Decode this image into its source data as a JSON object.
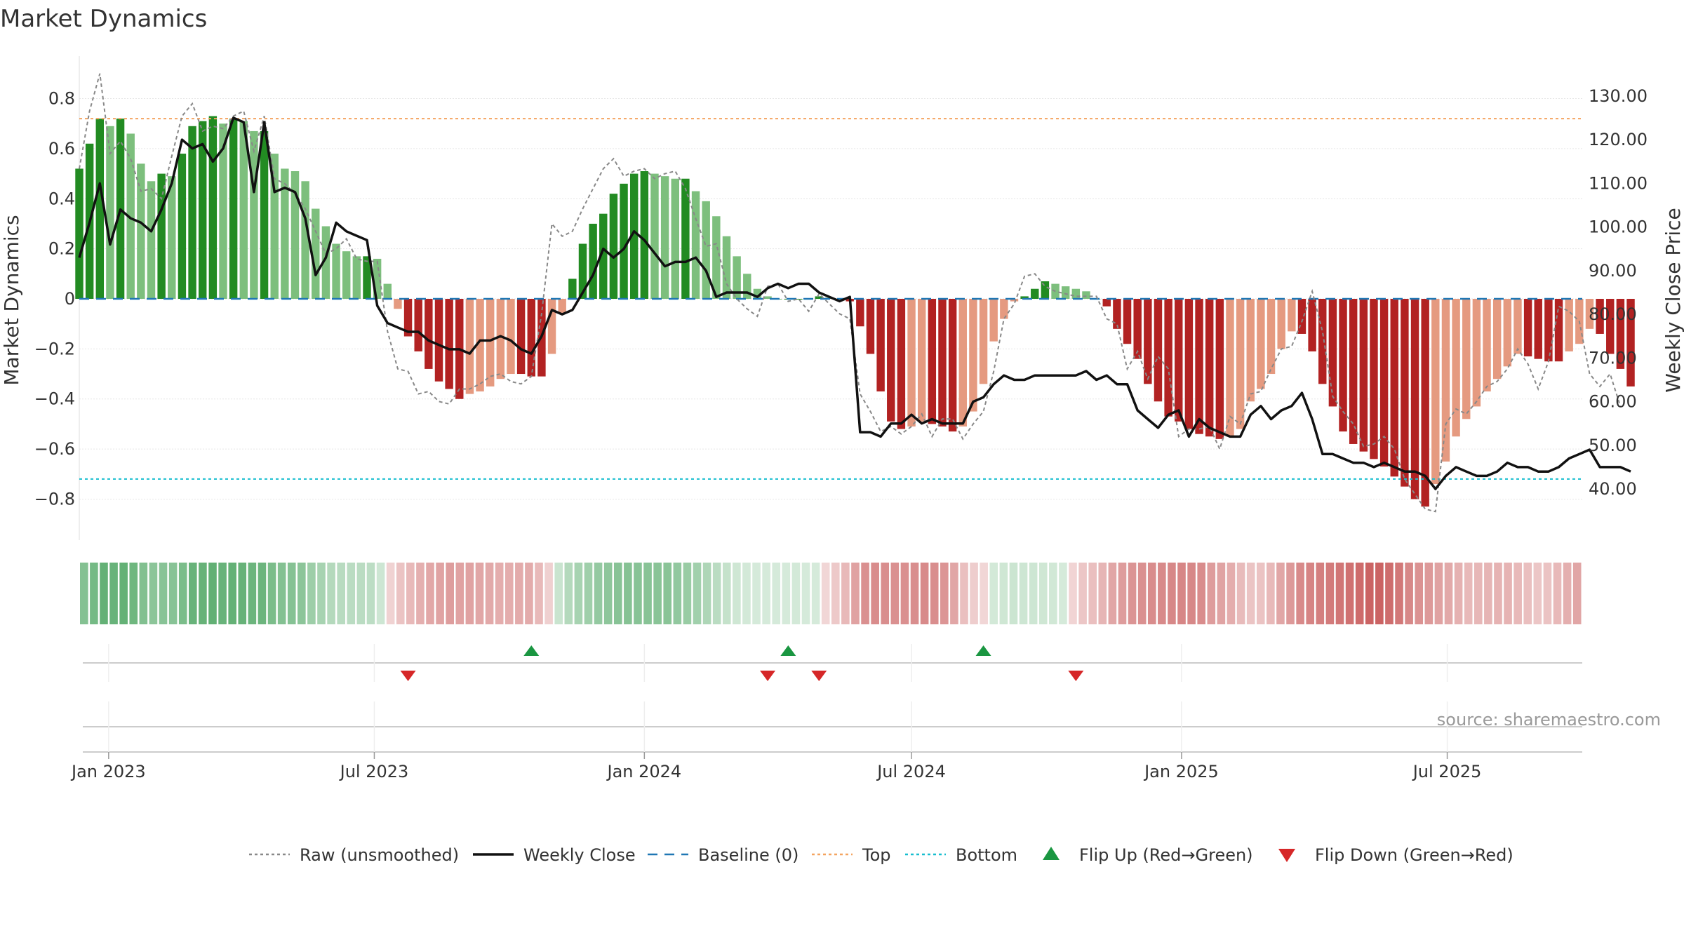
{
  "chart_data": {
    "type": "bar",
    "title": "Market Dynamics",
    "ylabel_left": "Market Dynamics",
    "ylabel_right": "Weekly Close Price",
    "ylim_left": [
      -0.88,
      0.88
    ],
    "ylim_right": [
      33.1,
      134.0
    ],
    "yticks_left": [
      0.8,
      0.6,
      0.4,
      0.2,
      0,
      -0.2,
      -0.4,
      -0.6,
      -0.8
    ],
    "yticks_left_labels": [
      "0.8",
      "0.6",
      "0.4",
      "0.2",
      "0",
      "−0.2",
      "−0.4",
      "−0.6",
      "−0.8"
    ],
    "yticks_right": [
      130,
      120,
      110,
      100,
      90,
      80,
      70,
      60,
      50,
      40
    ],
    "yticks_right_labels": [
      "130.00",
      "120.00",
      "110.00",
      "100.00",
      "90.00",
      "80.00",
      "70.00",
      "60.00",
      "50.00",
      "40.00"
    ],
    "xlim": [
      "2022-12-12",
      "2025-10-01"
    ],
    "xticks": [
      "2023-01-01",
      "2023-07-01",
      "2024-01-01",
      "2024-07-01",
      "2025-01-01",
      "2025-07-01"
    ],
    "xtick_labels": [
      "Jan 2023",
      "Jul 2023",
      "Jan 2024",
      "Jul 2024",
      "Jan 2025",
      "Jul 2025"
    ],
    "start_date": "2022-12-12",
    "week_dates_note": "weekly values from start_date, 7 days apart",
    "top_threshold": 0.72,
    "bottom_threshold": -0.72,
    "values": [
      0.52,
      0.62,
      0.72,
      0.69,
      0.72,
      0.66,
      0.54,
      0.47,
      0.5,
      0.49,
      0.58,
      0.69,
      0.71,
      0.73,
      0.7,
      0.72,
      0.71,
      0.67,
      0.67,
      0.58,
      0.52,
      0.51,
      0.47,
      0.36,
      0.29,
      0.22,
      0.19,
      0.17,
      0.17,
      0.16,
      0.06,
      -0.04,
      -0.15,
      -0.21,
      -0.28,
      -0.33,
      -0.36,
      -0.4,
      -0.38,
      -0.37,
      -0.35,
      -0.32,
      -0.3,
      -0.3,
      -0.31,
      -0.31,
      -0.22,
      -0.06,
      0.08,
      0.22,
      0.3,
      0.34,
      0.42,
      0.46,
      0.5,
      0.51,
      0.5,
      0.49,
      0.48,
      0.48,
      0.43,
      0.39,
      0.33,
      0.25,
      0.17,
      0.1,
      0.04,
      0.01,
      0.0,
      0.0,
      0.0,
      0.0,
      0.01,
      0.005,
      0.0,
      -0.01,
      -0.11,
      -0.22,
      -0.37,
      -0.49,
      -0.52,
      -0.51,
      -0.49,
      -0.5,
      -0.51,
      -0.53,
      -0.51,
      -0.45,
      -0.34,
      -0.17,
      -0.08,
      -0.01,
      0.01,
      0.04,
      0.07,
      0.06,
      0.05,
      0.04,
      0.03,
      0.0,
      -0.03,
      -0.12,
      -0.18,
      -0.24,
      -0.34,
      -0.41,
      -0.47,
      -0.49,
      -0.52,
      -0.54,
      -0.55,
      -0.56,
      -0.55,
      -0.52,
      -0.41,
      -0.36,
      -0.3,
      -0.2,
      -0.13,
      -0.14,
      -0.21,
      -0.34,
      -0.43,
      -0.53,
      -0.58,
      -0.61,
      -0.64,
      -0.67,
      -0.71,
      -0.75,
      -0.8,
      -0.83,
      -0.74,
      -0.65,
      -0.55,
      -0.48,
      -0.43,
      -0.37,
      -0.32,
      -0.27,
      -0.22,
      -0.23,
      -0.24,
      -0.25,
      -0.25,
      -0.21,
      -0.18,
      -0.12,
      -0.14,
      -0.22,
      -0.28,
      -0.35
    ],
    "close": [
      93,
      101,
      110,
      96,
      104,
      102,
      101,
      99,
      104,
      110,
      120,
      118,
      119,
      115,
      118,
      125,
      124,
      108,
      124,
      108,
      109,
      108,
      102,
      89,
      93,
      101,
      99,
      98,
      97,
      82,
      78,
      77,
      76,
      76,
      74,
      73,
      72,
      72,
      71,
      74,
      74,
      75,
      74,
      72,
      71,
      75,
      81,
      80,
      81,
      85,
      89,
      95,
      93,
      95,
      99,
      97,
      94,
      91,
      92,
      92,
      93,
      90,
      84,
      85,
      85,
      85,
      84,
      86,
      87,
      86,
      87,
      87,
      85,
      84,
      83,
      84,
      53,
      53,
      52,
      55,
      55,
      57,
      55,
      56,
      55,
      55,
      55,
      60,
      61,
      64,
      66,
      65,
      65,
      66,
      66,
      66,
      66,
      66,
      67,
      65,
      66,
      64,
      64,
      58,
      56,
      54,
      57,
      58,
      52,
      56,
      54,
      53,
      52,
      52,
      57,
      59,
      56,
      58,
      59,
      62,
      56,
      48,
      48,
      47,
      46,
      46,
      45,
      46,
      45,
      44,
      44,
      43,
      40,
      43,
      45,
      44,
      43,
      43,
      44,
      46,
      45,
      45,
      44,
      44,
      45,
      47,
      48,
      49,
      45,
      45,
      45,
      44
    ],
    "raw": [
      0.52,
      0.75,
      0.9,
      0.58,
      0.63,
      0.56,
      0.43,
      0.44,
      0.4,
      0.57,
      0.73,
      0.78,
      0.67,
      0.69,
      0.68,
      0.73,
      0.75,
      0.59,
      0.73,
      0.48,
      0.46,
      0.42,
      0.36,
      0.27,
      0.18,
      0.2,
      0.24,
      0.16,
      0.15,
      0.15,
      -0.13,
      -0.28,
      -0.29,
      -0.38,
      -0.37,
      -0.41,
      -0.42,
      -0.36,
      -0.36,
      -0.34,
      -0.31,
      -0.3,
      -0.33,
      -0.34,
      -0.31,
      -0.06,
      0.3,
      0.25,
      0.27,
      0.36,
      0.44,
      0.52,
      0.56,
      0.49,
      0.51,
      0.52,
      0.48,
      0.5,
      0.51,
      0.44,
      0.32,
      0.21,
      0.22,
      0.06,
      0.0,
      -0.04,
      -0.07,
      0.05,
      0.06,
      -0.01,
      0.0,
      -0.05,
      0.02,
      -0.02,
      -0.06,
      -0.08,
      -0.38,
      -0.45,
      -0.53,
      -0.51,
      -0.54,
      -0.51,
      -0.46,
      -0.55,
      -0.48,
      -0.48,
      -0.56,
      -0.5,
      -0.45,
      -0.29,
      -0.08,
      -0.02,
      0.09,
      0.1,
      0.05,
      0.03,
      0.02,
      0.01,
      0.01,
      0.01,
      -0.08,
      -0.1,
      -0.28,
      -0.21,
      -0.32,
      -0.23,
      -0.28,
      -0.55,
      -0.52,
      -0.52,
      -0.51,
      -0.6,
      -0.47,
      -0.5,
      -0.38,
      -0.37,
      -0.28,
      -0.2,
      -0.19,
      -0.09,
      0.03,
      -0.13,
      -0.39,
      -0.45,
      -0.5,
      -0.59,
      -0.58,
      -0.55,
      -0.6,
      -0.72,
      -0.78,
      -0.84,
      -0.85,
      -0.5,
      -0.44,
      -0.46,
      -0.41,
      -0.35,
      -0.33,
      -0.28,
      -0.2,
      -0.26,
      -0.36,
      -0.25,
      -0.03,
      -0.05,
      -0.09,
      -0.3,
      -0.35,
      -0.3,
      -0.43
    ],
    "flips_up": [
      "2023-10-16",
      "2024-04-08",
      "2024-08-19"
    ],
    "flips_down": [
      "2023-07-24",
      "2024-03-25",
      "2024-04-29",
      "2024-10-21"
    ],
    "legend": [
      {
        "label": "Raw (unsmoothed)",
        "style": "dotted",
        "color": "#888888"
      },
      {
        "label": "Weekly Close",
        "style": "solid",
        "color": "#111111"
      },
      {
        "label": "Baseline (0)",
        "style": "dashed",
        "color": "#1f77b4"
      },
      {
        "label": "Top",
        "style": "dotted",
        "color": "#f4a460"
      },
      {
        "label": "Bottom",
        "style": "dotted",
        "color": "#17becf"
      },
      {
        "label": "Flip Up (Red→Green)",
        "style": "marker-up",
        "color": "#1a9641"
      },
      {
        "label": "Flip Down (Green→Red)",
        "style": "marker-down",
        "color": "#d62728"
      }
    ],
    "legend_placement": "bottom-center",
    "source": "source: sharemaestro.com",
    "grid": true
  },
  "colors": {
    "strong_green": "#228b22",
    "light_green": "#7dbf7d",
    "strong_red": "#b22222",
    "light_red": "#e59a80",
    "top_line": "#f4a460",
    "bottom_line": "#17becf",
    "baseline": "#1f77b4",
    "flip_up": "#1a9641",
    "flip_down": "#d62728"
  }
}
